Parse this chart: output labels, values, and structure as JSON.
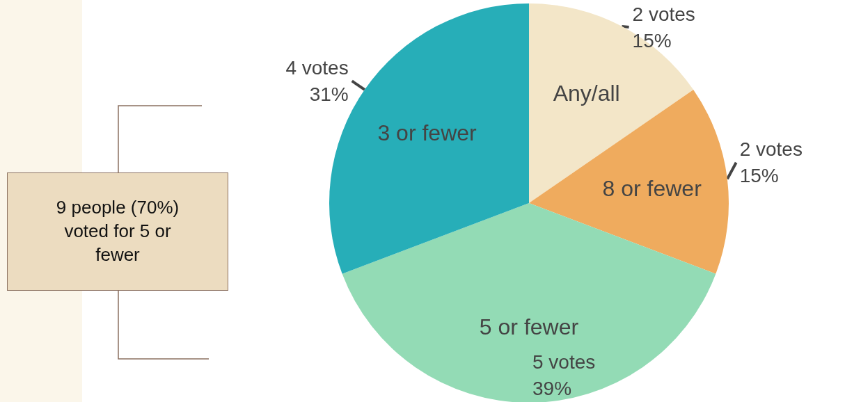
{
  "chart_data": {
    "type": "pie",
    "categories": [
      "Any/all",
      "8 or fewer",
      "5 or fewer",
      "3 or fewer"
    ],
    "values": [
      2,
      2,
      5,
      4
    ],
    "value_labels": [
      "2 votes\n15%",
      "2 votes\n15%",
      "5 votes\n39%",
      "4 votes\n31%"
    ],
    "colors": [
      "#f3e6c8",
      "#efab5e",
      "#93dbb5",
      "#27aeb8"
    ],
    "annotations": [
      "9 people (70%) voted for 5 or fewer"
    ],
    "legend": false
  }
}
